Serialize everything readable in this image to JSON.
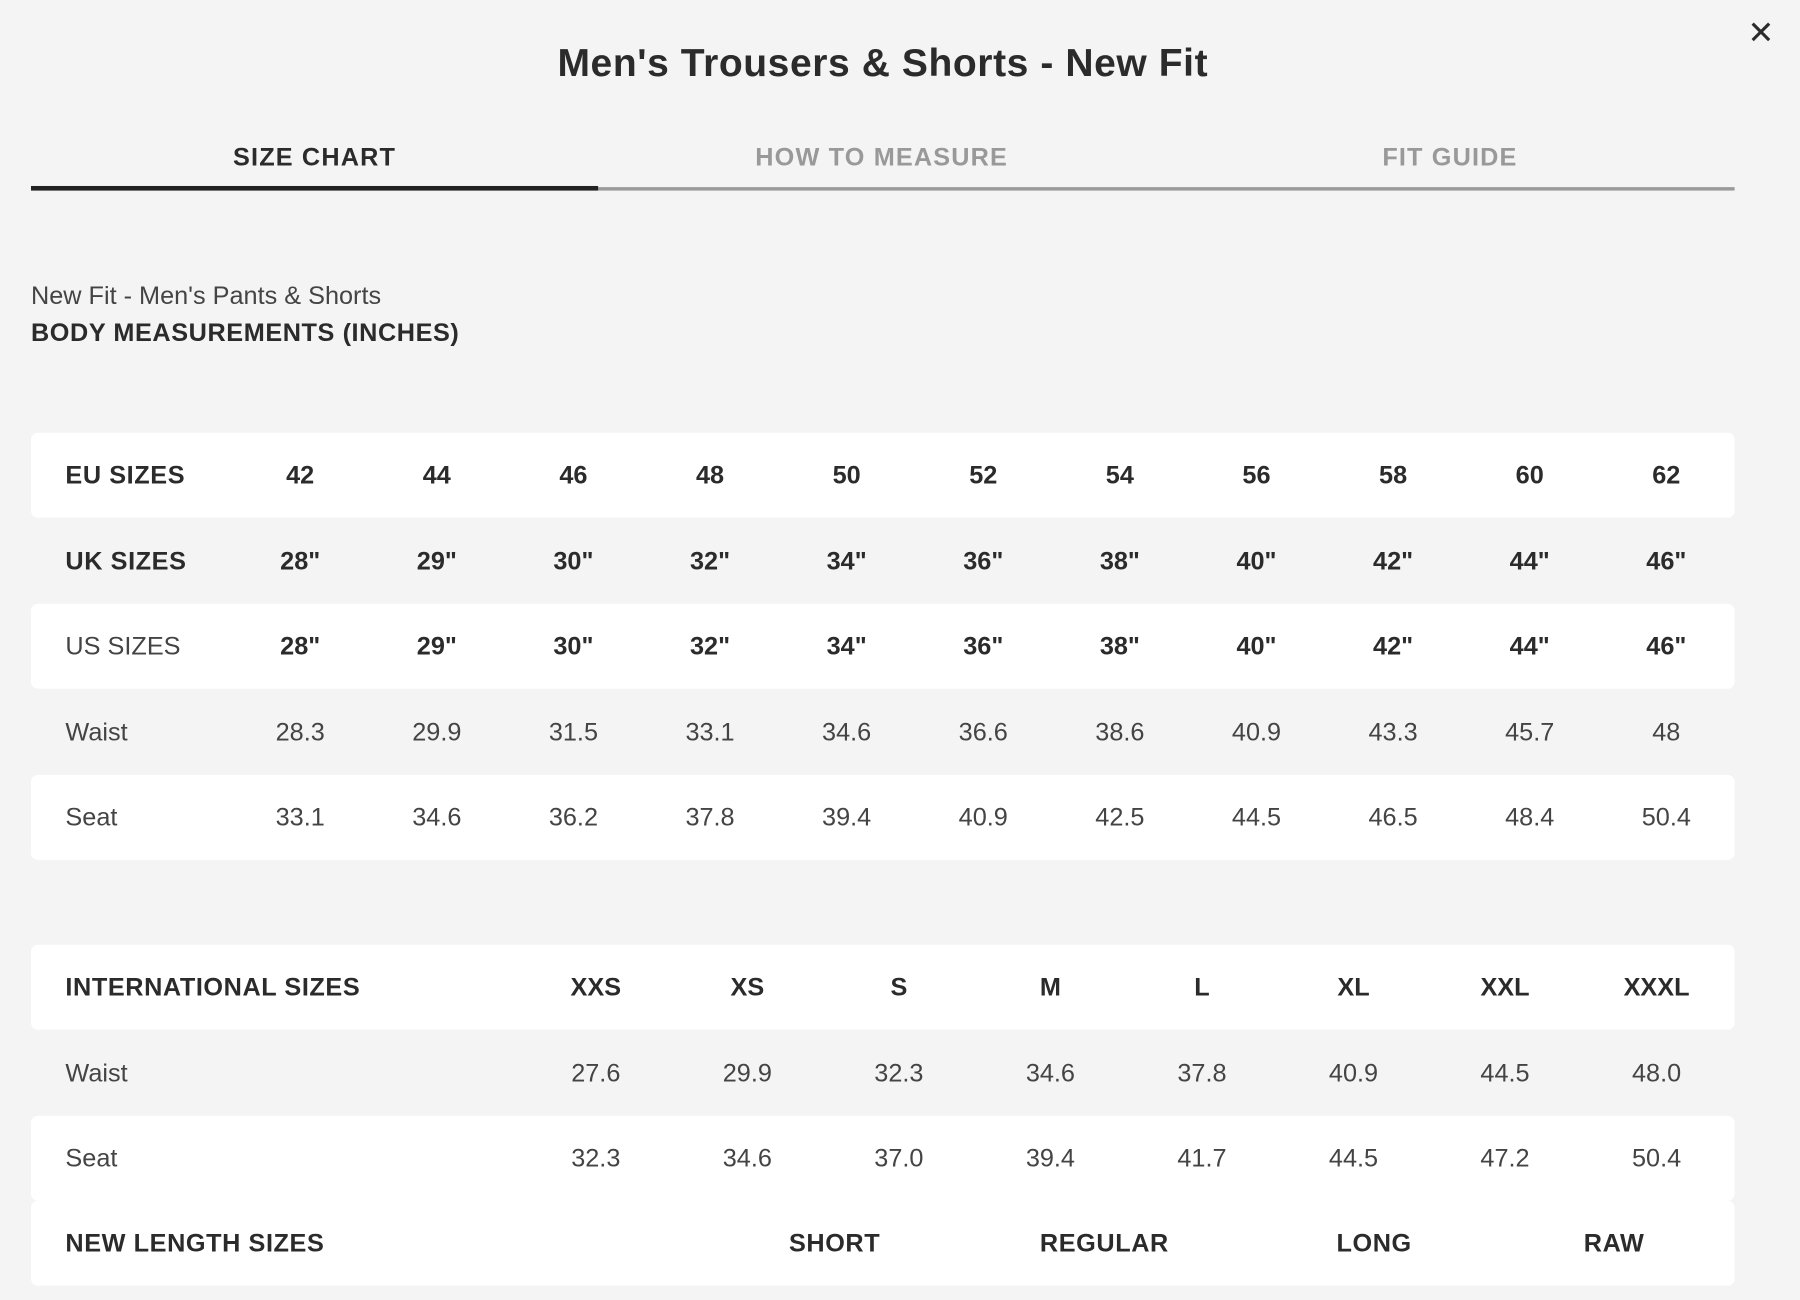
{
  "title": "Men's Trousers & Shorts - New Fit",
  "close_icon": "close-icon",
  "tabs": [
    {
      "label": "SIZE CHART",
      "active": true
    },
    {
      "label": "HOW TO MEASURE",
      "active": false
    },
    {
      "label": "FIT GUIDE",
      "active": false
    }
  ],
  "subtitle": "New Fit - Men's Pants & Shorts",
  "section_heading": "BODY MEASUREMENTS (INCHES)",
  "body_table": {
    "rows": [
      {
        "label": "EU SIZES",
        "values": [
          "42",
          "44",
          "46",
          "48",
          "50",
          "52",
          "54",
          "56",
          "58",
          "60",
          "62"
        ]
      },
      {
        "label": "UK SIZES",
        "values": [
          "28\"",
          "29\"",
          "30\"",
          "32\"",
          "34\"",
          "36\"",
          "38\"",
          "40\"",
          "42\"",
          "44\"",
          "46\""
        ]
      },
      {
        "label": "US SIZES",
        "values": [
          "28\"",
          "29\"",
          "30\"",
          "32\"",
          "34\"",
          "36\"",
          "38\"",
          "40\"",
          "42\"",
          "44\"",
          "46\""
        ]
      },
      {
        "label": "Waist",
        "values": [
          "28.3",
          "29.9",
          "31.5",
          "33.1",
          "34.6",
          "36.6",
          "38.6",
          "40.9",
          "43.3",
          "45.7",
          "48"
        ]
      },
      {
        "label": "Seat",
        "values": [
          "33.1",
          "34.6",
          "36.2",
          "37.8",
          "39.4",
          "40.9",
          "42.5",
          "44.5",
          "46.5",
          "48.4",
          "50.4"
        ]
      }
    ]
  },
  "intl_table": {
    "rows": [
      {
        "label": "INTERNATIONAL SIZES",
        "values": [
          "XXS",
          "XS",
          "S",
          "M",
          "L",
          "XL",
          "XXL",
          "XXXL"
        ]
      },
      {
        "label": "Waist",
        "values": [
          "27.6",
          "29.9",
          "32.3",
          "34.6",
          "37.8",
          "40.9",
          "44.5",
          "48.0"
        ]
      },
      {
        "label": "Seat",
        "values": [
          "32.3",
          "34.6",
          "37.0",
          "39.4",
          "41.7",
          "44.5",
          "47.2",
          "50.4"
        ]
      }
    ]
  },
  "length_table": {
    "label": "NEW LENGTH SIZES",
    "values": [
      "SHORT",
      "REGULAR",
      "LONG",
      "RAW"
    ]
  },
  "colors": {
    "background": "#f4f4f4",
    "text": "#2b2b2b",
    "inactive_tab": "#999999",
    "row_highlight": "#ffffff"
  }
}
